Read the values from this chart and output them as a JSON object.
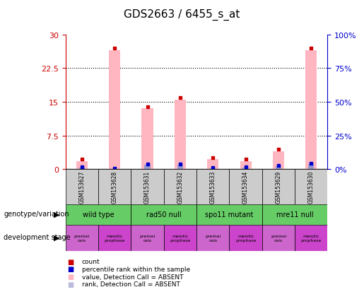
{
  "title": "GDS2663 / 6455_s_at",
  "samples": [
    "GSM153627",
    "GSM153628",
    "GSM153631",
    "GSM153632",
    "GSM153633",
    "GSM153634",
    "GSM153629",
    "GSM153630"
  ],
  "pink_bars": [
    1.8,
    26.5,
    13.5,
    15.5,
    2.2,
    1.8,
    4.0,
    26.5
  ],
  "blue_bars": [
    1.2,
    0.2,
    3.0,
    3.0,
    0.8,
    1.2,
    2.2,
    4.0
  ],
  "ylim_left": [
    0,
    30
  ],
  "ylim_right": [
    0,
    100
  ],
  "yticks_left": [
    0,
    7.5,
    15,
    22.5,
    30
  ],
  "yticks_right": [
    0,
    25,
    50,
    75,
    100
  ],
  "ytick_labels_left": [
    "0",
    "7.5",
    "15",
    "22.5",
    "30"
  ],
  "ytick_labels_right": [
    "0%",
    "25%",
    "50%",
    "75%",
    "100%"
  ],
  "genotype_groups": [
    {
      "label": "wild type",
      "start": 0,
      "end": 2
    },
    {
      "label": "rad50 null",
      "start": 2,
      "end": 4
    },
    {
      "label": "spo11 mutant",
      "start": 4,
      "end": 6
    },
    {
      "label": "mre11 null",
      "start": 6,
      "end": 8
    }
  ],
  "dev_stages": [
    "premei\nosis",
    "meiotic\nprophase",
    "premei\nosis",
    "meiotic\nprophase",
    "premei\nosis",
    "meiotic\nprophase",
    "premei\nosis",
    "meiotic\nprophase"
  ],
  "bg_color": "#ffffff",
  "pink_color": "#ffb6c1",
  "blue_color": "#9999cc",
  "red_dot_color": "#cc0000",
  "blue_dot_color": "#0000cc",
  "sample_bg": "#cccccc",
  "genotype_bg": "#66cc66",
  "dev_premei_bg": "#cc66cc",
  "dev_meiotic_bg": "#cc44cc",
  "left_axis_color": "#cc0000",
  "right_axis_color": "#0000cc",
  "legend_items": [
    {
      "color": "#cc0000",
      "label": "count"
    },
    {
      "color": "#0000cc",
      "label": "percentile rank within the sample"
    },
    {
      "color": "#ffb6c1",
      "label": "value, Detection Call = ABSENT"
    },
    {
      "color": "#bbbbdd",
      "label": "rank, Detection Call = ABSENT"
    }
  ]
}
